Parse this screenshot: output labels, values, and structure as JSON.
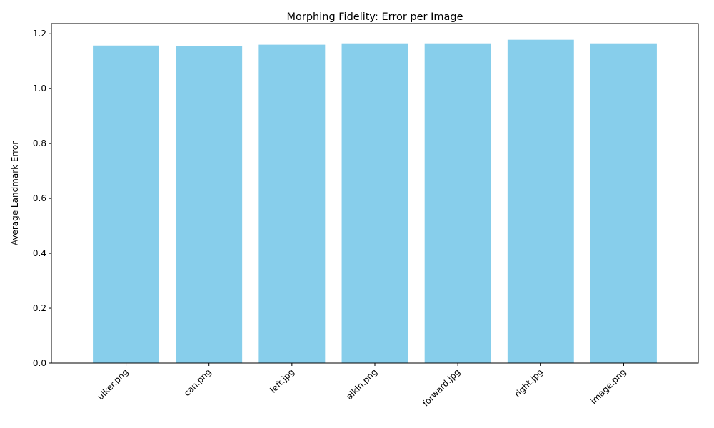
{
  "chart_data": {
    "type": "bar",
    "title": "Morphing Fidelity: Error per Image",
    "xlabel": "",
    "ylabel": "Average Landmark Error",
    "categories": [
      "ulker.png",
      "can.png",
      "left.jpg",
      "alkin.png",
      "forward.jpg",
      "right.jpg",
      "image.png"
    ],
    "values": [
      1.157,
      1.155,
      1.16,
      1.165,
      1.165,
      1.178,
      1.165
    ],
    "ylim": [
      0,
      1.237
    ],
    "yticks": [
      "0.0",
      "0.2",
      "0.4",
      "0.6",
      "0.8",
      "1.0",
      "1.2"
    ],
    "grid": false,
    "bar_color": "#87ceeb",
    "x_tick_rotation_deg": 45
  }
}
